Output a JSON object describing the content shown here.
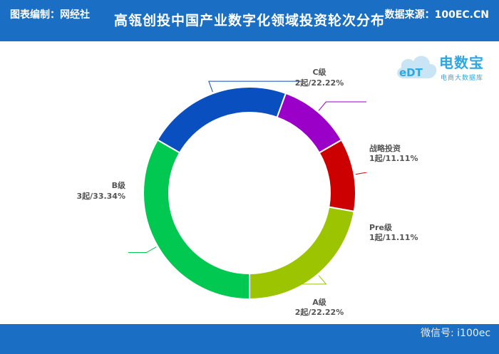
{
  "header": {
    "title": "高瓴创投中国产业数字化领域投资轮次分布"
  },
  "logo": {
    "brand": "电数宝",
    "mark": "eDT",
    "tagline": "电商大数据库"
  },
  "footer": {
    "left": "图表编制：网经社",
    "right": "数据来源：100EC.CN",
    "watermark": "微信号: i100ec"
  },
  "colors": {
    "header_bg": "#1a6fc4",
    "footer_bg": "#1a6fc4"
  },
  "chart_data": {
    "type": "pie",
    "variant": "donut",
    "title": "高瓴创投中国产业数字化领域投资轮次分布",
    "slices": [
      {
        "name": "C级",
        "count": 2,
        "percent": 22.22,
        "label": "2起/22.22%",
        "color": "#0a4fc0"
      },
      {
        "name": "战略投资",
        "count": 1,
        "percent": 11.11,
        "label": "1起/11.11%",
        "color": "#9b00c8"
      },
      {
        "name": "Pre级",
        "count": 1,
        "percent": 11.11,
        "label": "1起/11.11%",
        "color": "#cc0000"
      },
      {
        "name": "A级",
        "count": 2,
        "percent": 22.22,
        "label": "2起/22.22%",
        "color": "#9cc400"
      },
      {
        "name": "B级",
        "count": 3,
        "percent": 33.34,
        "label": "3起/33.34%",
        "color": "#00c850"
      }
    ]
  }
}
